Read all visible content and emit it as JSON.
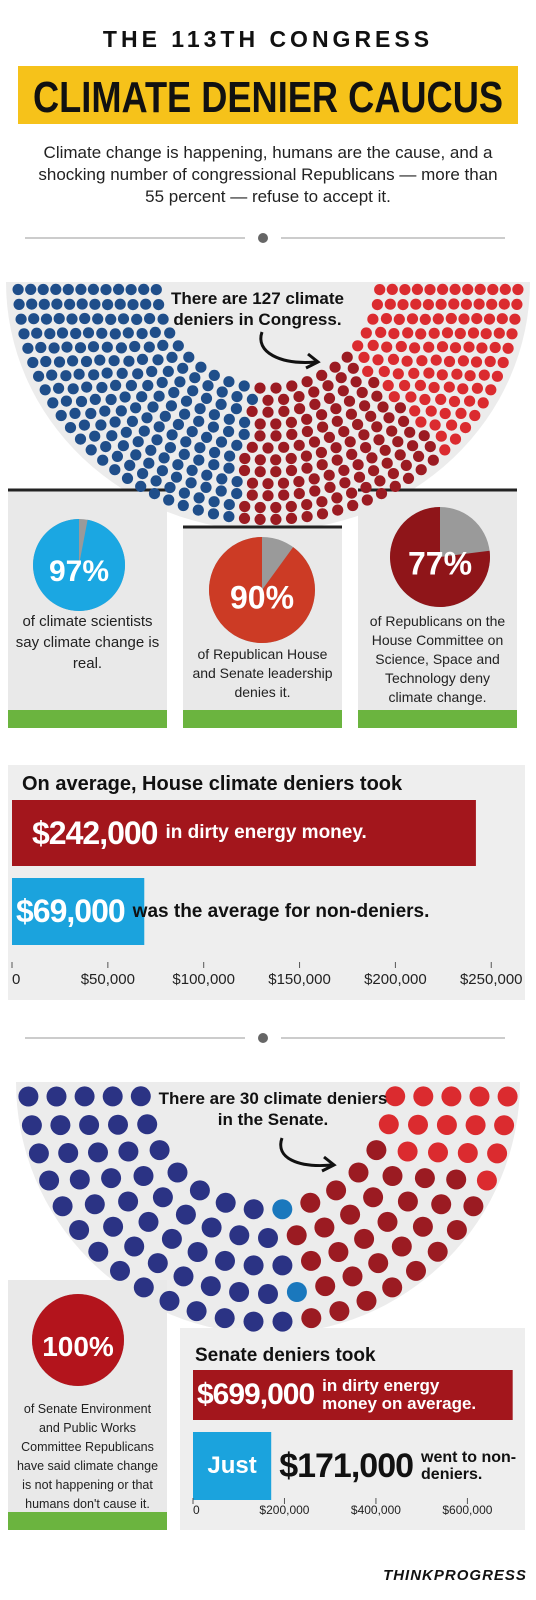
{
  "header": {
    "kicker": "THE 113TH CONGRESS",
    "title": "CLIMATE DENIER CAUCUS",
    "subtitle": "Climate change is happening, humans are the cause, and a shocking number of congressional Republicans — more than 55 percent — refuse to accept it."
  },
  "chart_data": [
    {
      "type": "parliament",
      "annotation": "There are 127 climate deniers in Congress.",
      "values": [
        200,
        127,
        108
      ],
      "colors": [
        "#1f4e8a",
        "#9b1b22",
        "#db2b2f"
      ]
    },
    {
      "type": "pie",
      "values": [
        97
      ],
      "value_labels": [
        "97%"
      ],
      "color": "#1ba7e2",
      "caption": "of climate scientists say climate change is real."
    },
    {
      "type": "pie",
      "values": [
        90
      ],
      "value_labels": [
        "90%"
      ],
      "color": "#cc3b25",
      "caption": "of Republican House and Senate leadership denies it."
    },
    {
      "type": "pie",
      "values": [
        77
      ],
      "value_labels": [
        "77%"
      ],
      "color": "#8f1519",
      "caption": "of Republicans on the House Committee on Science, Space and Technology deny climate change."
    },
    {
      "type": "bar",
      "orientation": "horizontal",
      "title": "On average, House climate deniers took",
      "categories": [
        "in dirty energy money.",
        "was the average for non-deniers."
      ],
      "values": [
        242000,
        69000
      ],
      "value_labels": [
        "$242,000",
        "$69,000"
      ],
      "colors": [
        "#a3161c",
        "#1ba3dd"
      ],
      "xlim": [
        0,
        265000
      ],
      "xticks": [
        0,
        {
          "value": 50000,
          "label": "$50,000"
        },
        {
          "value": 100000,
          "label": "$100,000"
        },
        {
          "value": 150000,
          "label": "$150,000"
        },
        {
          "value": 200000,
          "label": "$200,000"
        },
        {
          "value": 250000,
          "label": "$250,000"
        }
      ]
    },
    {
      "type": "parliament",
      "annotation": "There are 30 climate deniers in the Senate.",
      "values": [
        53,
        2,
        30,
        15
      ],
      "colors": [
        "#2b3384",
        "#1a78bd",
        "#9b1b22",
        "#db2b2f"
      ]
    },
    {
      "type": "pie",
      "values": [
        100
      ],
      "value_labels": [
        "100%"
      ],
      "color": "#b3141c",
      "caption": "of Senate Environment and Public Works Committee Republicans have said climate change is not happening or that humans don't cause it."
    },
    {
      "type": "bar",
      "orientation": "horizontal",
      "title": "Senate deniers took",
      "categories": [
        "in dirty energy money on average.",
        "went to non-deniers."
      ],
      "values": [
        699000,
        171000
      ],
      "value_labels": [
        "$699,000",
        "$171,000"
      ],
      "annotation": "Just",
      "colors": [
        "#a3161c",
        "#1ba3dd"
      ],
      "xlim": [
        0,
        715000
      ],
      "xticks": [
        0,
        {
          "value": 200000,
          "label": "$200,000"
        },
        {
          "value": 400000,
          "label": "$400,000"
        },
        {
          "value": 600000,
          "label": "$600,000"
        }
      ]
    }
  ],
  "footer": {
    "credit": "THINKPROGRESS"
  }
}
